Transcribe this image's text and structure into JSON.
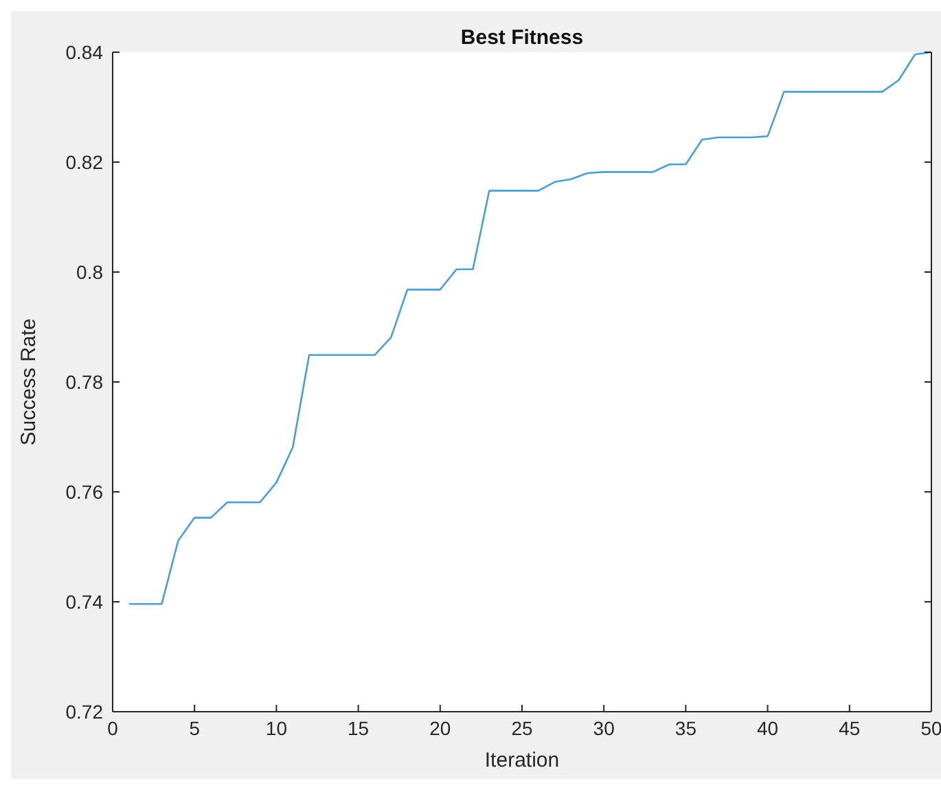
{
  "chart_data": {
    "type": "line",
    "title": "Best Fitness",
    "xlabel": "Iteration",
    "ylabel": "Success Rate",
    "x": [
      1,
      2,
      3,
      4,
      5,
      6,
      7,
      8,
      9,
      10,
      11,
      12,
      13,
      14,
      15,
      16,
      17,
      18,
      19,
      20,
      21,
      22,
      23,
      24,
      25,
      26,
      27,
      28,
      29,
      30,
      31,
      32,
      33,
      34,
      35,
      36,
      37,
      38,
      39,
      40,
      41,
      42,
      43,
      44,
      45,
      46,
      47,
      48,
      49,
      50
    ],
    "series": [
      {
        "color": "#4a9fd0",
        "values": [
          0.7396,
          0.7396,
          0.7396,
          0.7511,
          0.7553,
          0.7553,
          0.7581,
          0.7581,
          0.7581,
          0.7617,
          0.7681,
          0.7849,
          0.7849,
          0.7849,
          0.7849,
          0.7849,
          0.7881,
          0.7968,
          0.7968,
          0.7968,
          0.8005,
          0.8005,
          0.8148,
          0.8148,
          0.8148,
          0.8148,
          0.8164,
          0.8169,
          0.818,
          0.8182,
          0.8182,
          0.8182,
          0.8182,
          0.8196,
          0.8196,
          0.8241,
          0.8245,
          0.8245,
          0.8245,
          0.8247,
          0.8328,
          0.8328,
          0.8328,
          0.8328,
          0.8328,
          0.8328,
          0.8328,
          0.8349,
          0.8396,
          0.84
        ]
      }
    ],
    "xlim": [
      0,
      50
    ],
    "xticks": [
      0,
      5,
      10,
      15,
      20,
      25,
      30,
      35,
      40,
      45,
      50
    ],
    "ylim": [
      0.72,
      0.84
    ],
    "yticks": [
      0.72,
      0.74,
      0.76,
      0.78,
      0.8,
      0.82,
      0.84
    ],
    "grid": false,
    "legend": false,
    "marker": "none",
    "line_style": "solid"
  }
}
